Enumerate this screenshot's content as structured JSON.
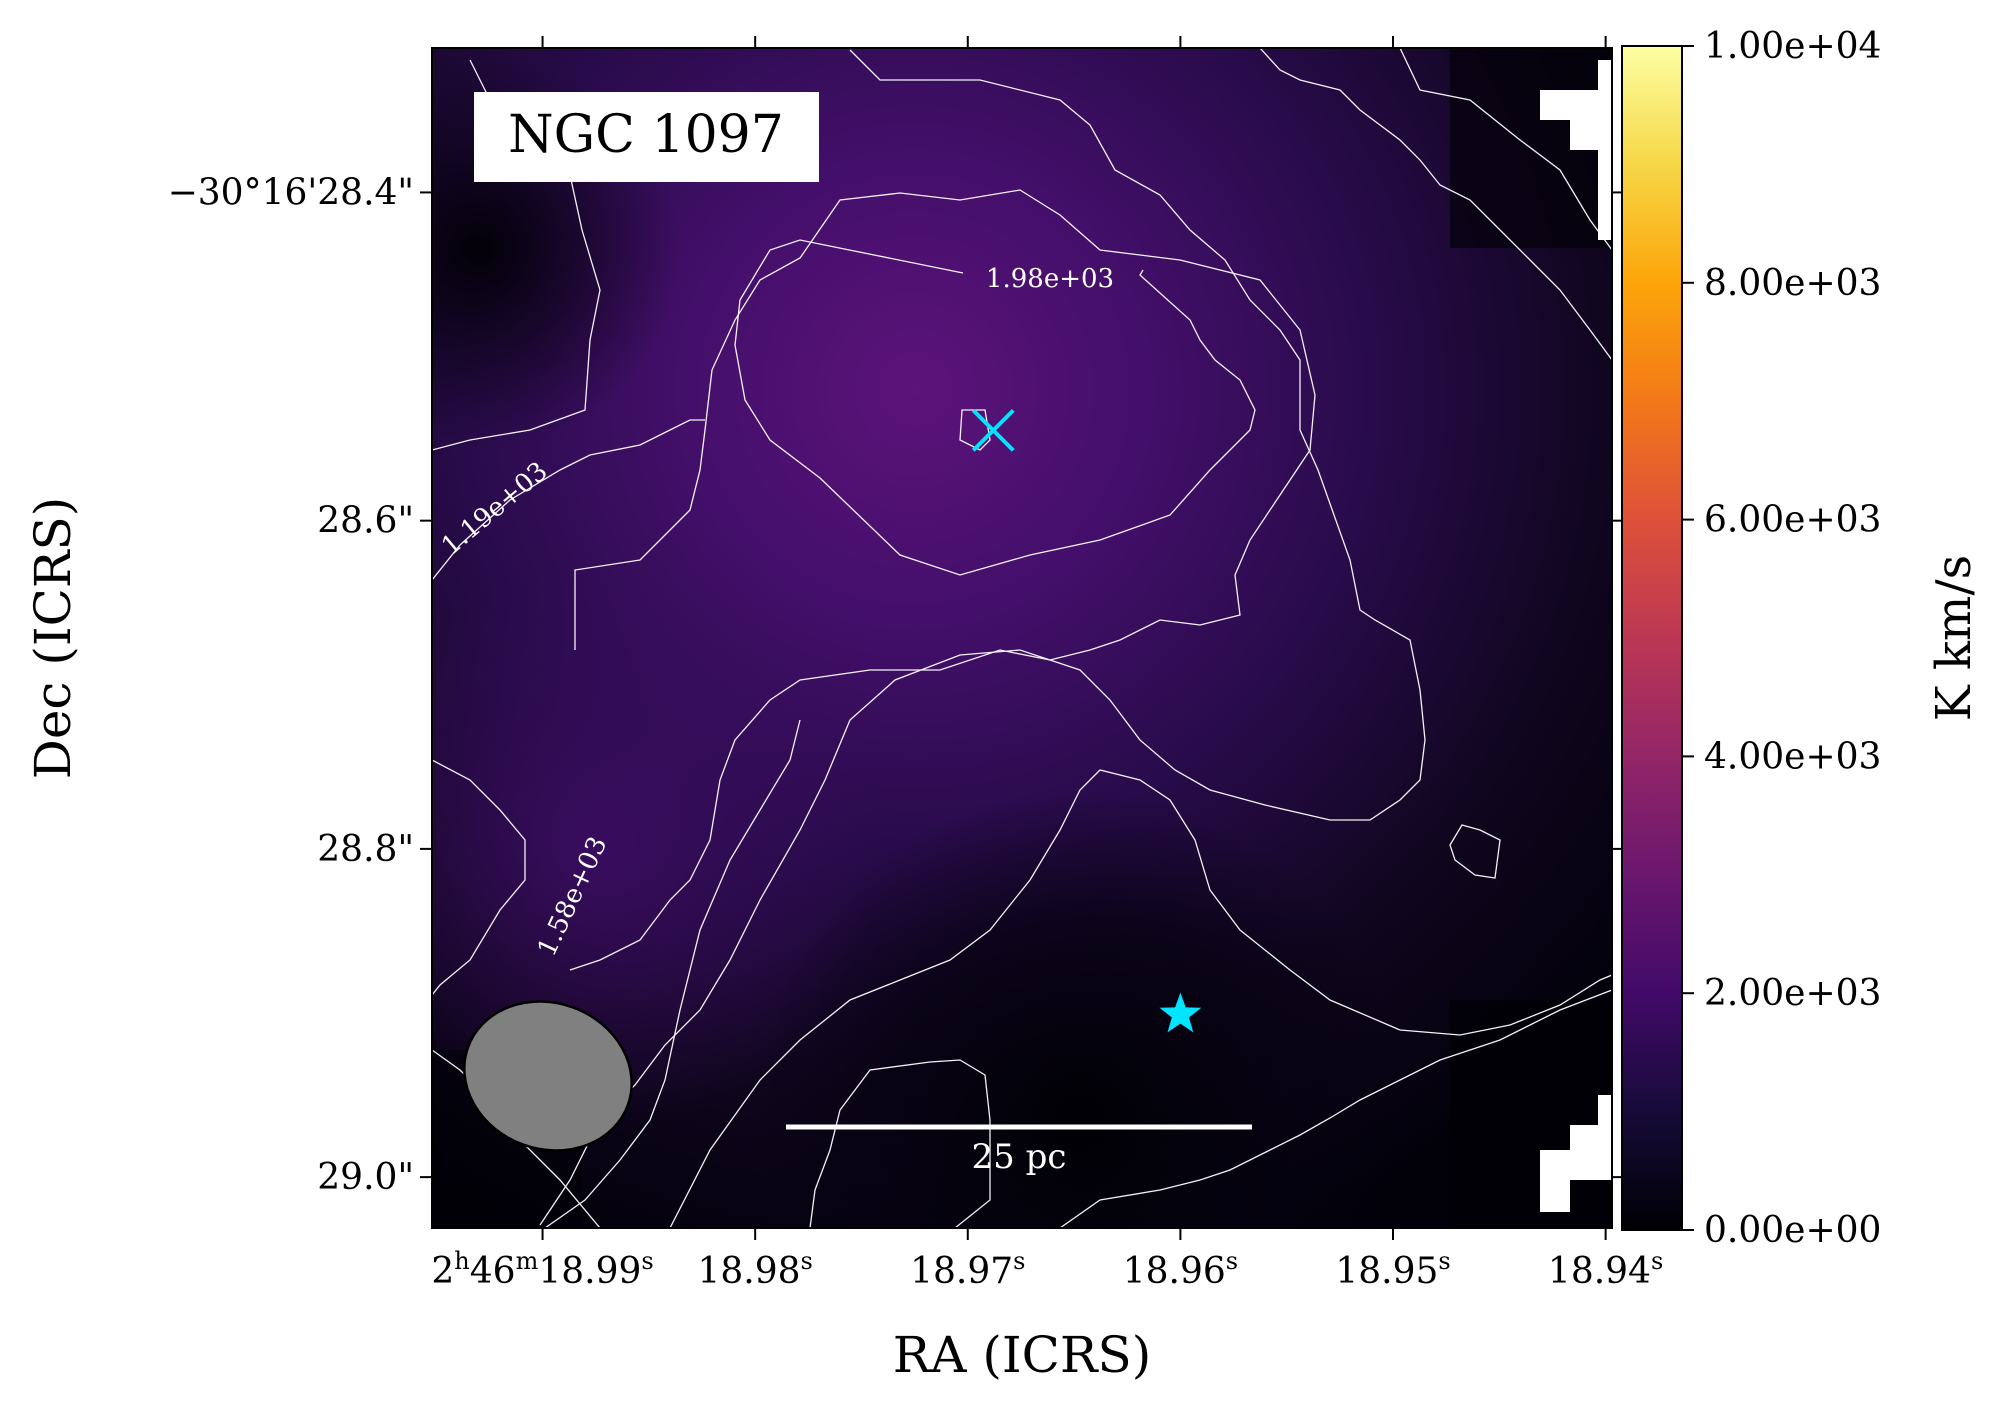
{
  "chart_data": {
    "type": "heatmap",
    "label": "NGC 1097",
    "xlabel": "RA (ICRS)",
    "ylabel": "Dec (ICRS)",
    "x_ticks": [
      {
        "value": 18.99,
        "h": "2",
        "m": "46",
        "s": "18.99",
        "sup_s": "s"
      },
      {
        "value": 18.98,
        "s": "18.98",
        "sup_s": "s"
      },
      {
        "value": 18.97,
        "s": "18.97",
        "sup_s": "s"
      },
      {
        "value": 18.96,
        "s": "18.96",
        "sup_s": "s"
      },
      {
        "value": 18.95,
        "s": "18.95",
        "sup_s": "s"
      },
      {
        "value": 18.94,
        "s": "18.94",
        "sup_s": "s"
      }
    ],
    "x_range": [
      18.9952,
      18.9397
    ],
    "y_ticks": [
      {
        "value": 28.4,
        "label": "−30°16'28.4\""
      },
      {
        "value": 28.6,
        "label": "28.6\""
      },
      {
        "value": 28.8,
        "label": "28.8\""
      },
      {
        "value": 29.0,
        "label": "29.0\""
      }
    ],
    "y_range": [
      28.312,
      29.031
    ],
    "colorbar": {
      "label": "K km/s",
      "min": 0,
      "max": 10000,
      "ticks": [
        {
          "value": 0,
          "label": "0.00e+00"
        },
        {
          "value": 2000,
          "label": "2.00e+03"
        },
        {
          "value": 4000,
          "label": "4.00e+03"
        },
        {
          "value": 6000,
          "label": "6.00e+03"
        },
        {
          "value": 8000,
          "label": "8.00e+03"
        },
        {
          "value": 10000,
          "label": "1.00e+04"
        }
      ],
      "colormap": "inferno"
    },
    "contour_labels": [
      {
        "value": 1980,
        "text": "1.98e+03"
      },
      {
        "value": 1190,
        "text": "1.19e+03"
      },
      {
        "value": 1580,
        "text": "1.58e+03"
      }
    ],
    "intensity_peak_approx": 2250,
    "markers": [
      {
        "symbol": "x",
        "ra": 18.9688,
        "dec": 28.545,
        "color": "#00e5ff"
      },
      {
        "symbol": "star",
        "ra": 18.96,
        "dec": 28.901,
        "color": "#00e5ff"
      }
    ],
    "scale_bar": {
      "label": "25 pc",
      "color": "#ffffff"
    },
    "beam": {
      "color": "#808080"
    }
  }
}
